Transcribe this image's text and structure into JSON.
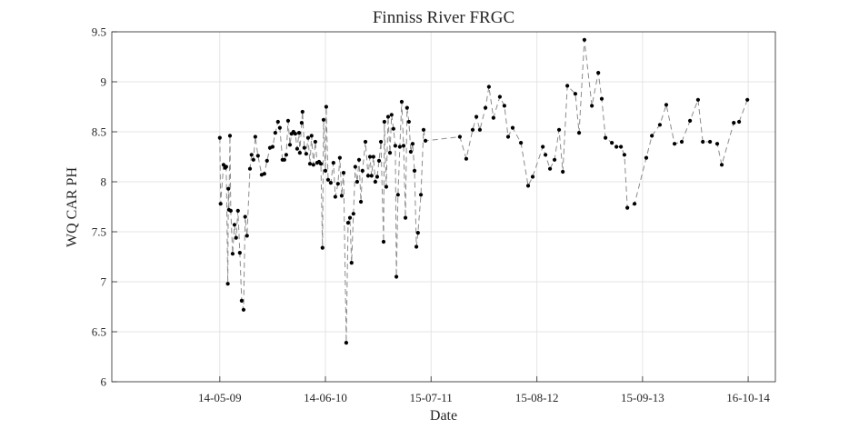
{
  "chart_data": {
    "type": "line",
    "title": "Finniss River FRGC",
    "x_label": "Date",
    "y_label": "WQ CAR PH",
    "x": [
      "2009-05-14",
      "2009-05-17",
      "2009-05-28",
      "2009-06-03",
      "2009-06-07",
      "2009-06-13",
      "2009-06-15",
      "2009-06-17",
      "2009-06-21",
      "2009-06-24",
      "2009-07-01",
      "2009-07-08",
      "2009-07-14",
      "2009-07-21",
      "2009-07-28",
      "2009-08-04",
      "2009-08-11",
      "2009-08-17",
      "2009-08-24",
      "2009-09-04",
      "2009-09-10",
      "2009-09-17",
      "2009-09-24",
      "2009-10-04",
      "2009-10-18",
      "2009-10-28",
      "2009-11-07",
      "2009-11-18",
      "2009-11-28",
      "2009-12-08",
      "2009-12-18",
      "2009-12-25",
      "2010-01-04",
      "2010-01-11",
      "2010-01-18",
      "2010-01-25",
      "2010-02-01",
      "2010-02-07",
      "2010-02-14",
      "2010-02-21",
      "2010-02-28",
      "2010-03-07",
      "2010-03-10",
      "2010-03-17",
      "2010-03-20",
      "2010-03-27",
      "2010-04-03",
      "2010-04-10",
      "2010-04-17",
      "2010-04-23",
      "2010-04-30",
      "2010-05-07",
      "2010-05-14",
      "2010-05-21",
      "2010-05-28",
      "2010-06-03",
      "2010-06-07",
      "2010-06-14",
      "2010-06-17",
      "2010-06-24",
      "2010-07-04",
      "2010-07-14",
      "2010-07-21",
      "2010-07-31",
      "2010-08-07",
      "2010-08-14",
      "2010-08-21",
      "2010-08-31",
      "2010-09-07",
      "2010-09-14",
      "2010-09-20",
      "2010-09-27",
      "2010-10-04",
      "2010-10-11",
      "2010-10-18",
      "2010-10-25",
      "2010-10-31",
      "2010-11-11",
      "2010-11-21",
      "2010-11-28",
      "2010-12-04",
      "2010-12-11",
      "2010-12-18",
      "2010-12-25",
      "2011-01-01",
      "2011-01-08",
      "2011-01-18",
      "2011-01-21",
      "2011-01-28",
      "2011-02-04",
      "2011-02-11",
      "2011-02-17",
      "2011-02-24",
      "2011-03-03",
      "2011-03-07",
      "2011-03-13",
      "2011-03-20",
      "2011-03-27",
      "2011-04-03",
      "2011-04-10",
      "2011-04-16",
      "2011-04-23",
      "2011-04-30",
      "2011-05-07",
      "2011-05-14",
      "2011-05-21",
      "2011-05-27",
      "2011-06-07",
      "2011-06-17",
      "2011-06-24",
      "2011-10-31",
      "2011-11-24",
      "2011-12-18",
      "2012-01-01",
      "2012-01-14",
      "2012-02-04",
      "2012-02-17",
      "2012-03-05",
      "2012-03-29",
      "2012-04-15",
      "2012-04-29",
      "2012-05-16",
      "2012-06-16",
      "2012-07-13",
      "2012-07-30",
      "2012-09-06",
      "2012-09-16",
      "2012-10-03",
      "2012-10-20",
      "2012-11-06",
      "2012-11-20",
      "2012-12-07",
      "2013-01-06",
      "2013-01-20",
      "2013-02-09",
      "2013-03-09",
      "2013-04-02",
      "2013-04-15",
      "2013-04-29",
      "2013-05-23",
      "2013-06-09",
      "2013-06-26",
      "2013-07-09",
      "2013-07-20",
      "2013-08-16",
      "2013-09-29",
      "2013-10-20",
      "2013-11-19",
      "2013-12-13",
      "2014-01-13",
      "2014-02-09",
      "2014-03-12",
      "2014-04-11",
      "2014-04-29",
      "2014-05-26",
      "2014-06-22",
      "2014-07-09",
      "2014-08-23",
      "2014-09-12",
      "2014-10-13"
    ],
    "values": [
      8.44,
      7.78,
      8.17,
      8.14,
      8.15,
      6.98,
      7.93,
      7.72,
      8.46,
      7.71,
      7.28,
      7.57,
      7.44,
      7.71,
      7.29,
      6.81,
      6.72,
      7.65,
      7.46,
      8.13,
      8.27,
      8.22,
      8.45,
      8.26,
      8.07,
      8.08,
      8.21,
      8.34,
      8.35,
      8.49,
      8.6,
      8.54,
      8.22,
      8.22,
      8.27,
      8.61,
      8.37,
      8.48,
      8.5,
      8.48,
      8.33,
      8.49,
      8.29,
      8.59,
      8.7,
      8.34,
      8.28,
      8.44,
      8.18,
      8.46,
      8.17,
      8.4,
      8.19,
      8.2,
      8.18,
      7.34,
      8.62,
      8.11,
      8.75,
      8.02,
      7.99,
      8.19,
      7.85,
      7.98,
      8.24,
      7.86,
      8.09,
      6.39,
      7.59,
      7.64,
      7.19,
      7.68,
      8.15,
      8.0,
      8.22,
      7.8,
      8.11,
      8.4,
      8.06,
      8.25,
      8.06,
      8.25,
      8.0,
      8.05,
      8.21,
      8.4,
      7.4,
      8.6,
      7.95,
      8.65,
      8.29,
      8.67,
      8.53,
      8.36,
      7.05,
      7.87,
      8.35,
      8.8,
      8.36,
      7.64,
      8.74,
      8.6,
      8.3,
      8.38,
      8.11,
      7.35,
      7.49,
      7.87,
      8.52,
      8.41,
      8.45,
      8.23,
      8.52,
      8.65,
      8.52,
      8.74,
      8.95,
      8.64,
      8.85,
      8.76,
      8.45,
      8.54,
      8.39,
      7.96,
      8.05,
      8.35,
      8.27,
      8.13,
      8.22,
      8.52,
      8.1,
      8.96,
      8.88,
      8.49,
      9.42,
      8.76,
      9.09,
      8.83,
      8.44,
      8.39,
      8.35,
      8.35,
      8.27,
      7.74,
      7.78,
      8.24,
      8.46,
      8.57,
      8.77,
      8.38,
      8.4,
      8.61,
      8.82,
      8.4,
      8.4,
      8.38,
      8.17,
      8.59,
      8.6,
      8.82
    ],
    "line_color": "#8c8c8c",
    "marker_color": "#000000",
    "line_style": "dashed",
    "xlim": [
      "2008-04-04",
      "2015-01-26"
    ],
    "xticks": [
      {
        "value": "2009-05-14",
        "label": "14-05-09"
      },
      {
        "value": "2010-06-14",
        "label": "14-06-10"
      },
      {
        "value": "2011-07-15",
        "label": "15-07-11"
      },
      {
        "value": "2012-08-15",
        "label": "15-08-12"
      },
      {
        "value": "2013-09-15",
        "label": "15-09-13"
      },
      {
        "value": "2014-10-16",
        "label": "16-10-14"
      }
    ],
    "ylim": [
      6,
      9.5
    ],
    "yticks": [
      6,
      6.5,
      7,
      7.5,
      8,
      8.5,
      9,
      9.5
    ],
    "grid": true
  }
}
